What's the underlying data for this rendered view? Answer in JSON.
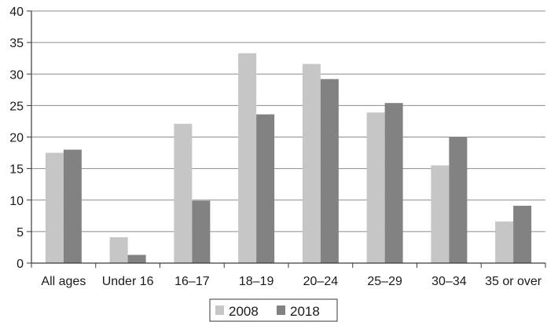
{
  "chart_data": {
    "type": "bar",
    "categories": [
      "All ages",
      "Under 16",
      "16–17",
      "18–19",
      "20–24",
      "25–29",
      "30–34",
      "35 or over"
    ],
    "series": [
      {
        "name": "2008",
        "color": "#c6c6c6",
        "values": [
          17.5,
          4.1,
          22.1,
          33.3,
          31.6,
          23.9,
          15.5,
          6.6
        ]
      },
      {
        "name": "2018",
        "color": "#828282",
        "values": [
          18.0,
          1.3,
          9.9,
          23.6,
          29.2,
          25.4,
          20.0,
          9.1
        ]
      }
    ],
    "title": "",
    "xlabel": "",
    "ylabel": "",
    "ylim": [
      0,
      40
    ],
    "yticks": [
      0,
      5,
      10,
      15,
      20,
      25,
      30,
      35,
      40
    ],
    "grid": true,
    "legend_position": "bottom-center"
  }
}
